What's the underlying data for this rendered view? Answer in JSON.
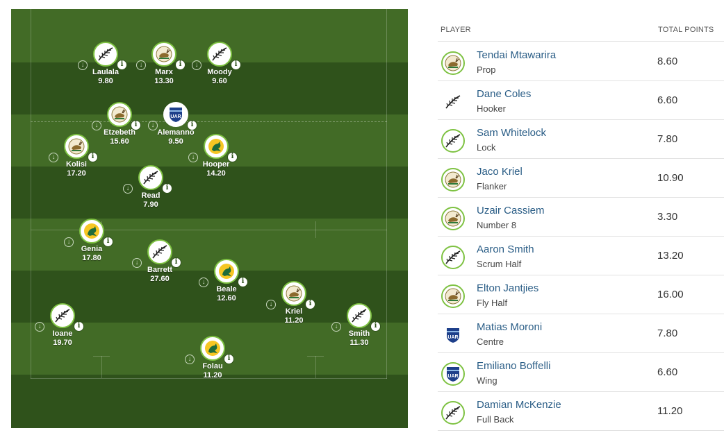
{
  "colors": {
    "pitch_dark": "#2f521b",
    "pitch_light": "#426b26",
    "badge_ring": "#7ec242",
    "player_link": "#2a5d86"
  },
  "pitch": {
    "players": [
      {
        "name": "Laulala",
        "score": "9.80",
        "team": "nz-fern-icon"
      },
      {
        "name": "Marx",
        "score": "13.30",
        "team": "sa-springbok-icon"
      },
      {
        "name": "Moody",
        "score": "9.60",
        "team": "nz-fern-icon"
      },
      {
        "name": "Etzebeth",
        "score": "15.60",
        "team": "sa-springbok-icon"
      },
      {
        "name": "Alemanno",
        "score": "9.50",
        "team": "arg-uar-icon"
      },
      {
        "name": "Kolisi",
        "score": "17.20",
        "team": "sa-springbok-icon"
      },
      {
        "name": "Hooper",
        "score": "14.20",
        "team": "aus-wallaby-icon"
      },
      {
        "name": "Read",
        "score": "7.90",
        "team": "nz-fern-icon"
      },
      {
        "name": "Genia",
        "score": "17.80",
        "team": "aus-wallaby-icon"
      },
      {
        "name": "Barrett",
        "score": "27.60",
        "team": "nz-fern-icon"
      },
      {
        "name": "Beale",
        "score": "12.60",
        "team": "aus-wallaby-icon"
      },
      {
        "name": "Kriel",
        "score": "11.20",
        "team": "sa-springbok-icon"
      },
      {
        "name": "Ioane",
        "score": "19.70",
        "team": "nz-fern-icon"
      },
      {
        "name": "Smith",
        "score": "11.30",
        "team": "nz-fern-icon"
      },
      {
        "name": "Folau",
        "score": "11.20",
        "team": "aus-wallaby-icon"
      }
    ]
  },
  "table": {
    "header": {
      "player": "PLAYER",
      "total_points": "TOTAL POINTS"
    },
    "rows": [
      {
        "name": "Tendai Mtawarira",
        "position": "Prop",
        "points": "8.60",
        "team": "sa-springbok-icon"
      },
      {
        "name": "Dane Coles",
        "position": "Hooker",
        "points": "6.60",
        "team": "nz-fern-icon"
      },
      {
        "name": "Sam Whitelock",
        "position": "Lock",
        "points": "7.80",
        "team": "nz-fern-icon"
      },
      {
        "name": "Jaco Kriel",
        "position": "Flanker",
        "points": "10.90",
        "team": "sa-springbok-icon"
      },
      {
        "name": "Uzair Cassiem",
        "position": "Number 8",
        "points": "3.30",
        "team": "sa-springbok-icon"
      },
      {
        "name": "Aaron Smith",
        "position": "Scrum Half",
        "points": "13.20",
        "team": "nz-fern-icon"
      },
      {
        "name": "Elton Jantjies",
        "position": "Fly Half",
        "points": "16.00",
        "team": "sa-springbok-icon"
      },
      {
        "name": "Matias Moroni",
        "position": "Centre",
        "points": "7.80",
        "team": "arg-uar-icon"
      },
      {
        "name": "Emiliano Boffelli",
        "position": "Wing",
        "points": "6.60",
        "team": "arg-uar-icon"
      },
      {
        "name": "Damian McKenzie",
        "position": "Full Back",
        "points": "11.20",
        "team": "nz-fern-icon"
      }
    ]
  }
}
